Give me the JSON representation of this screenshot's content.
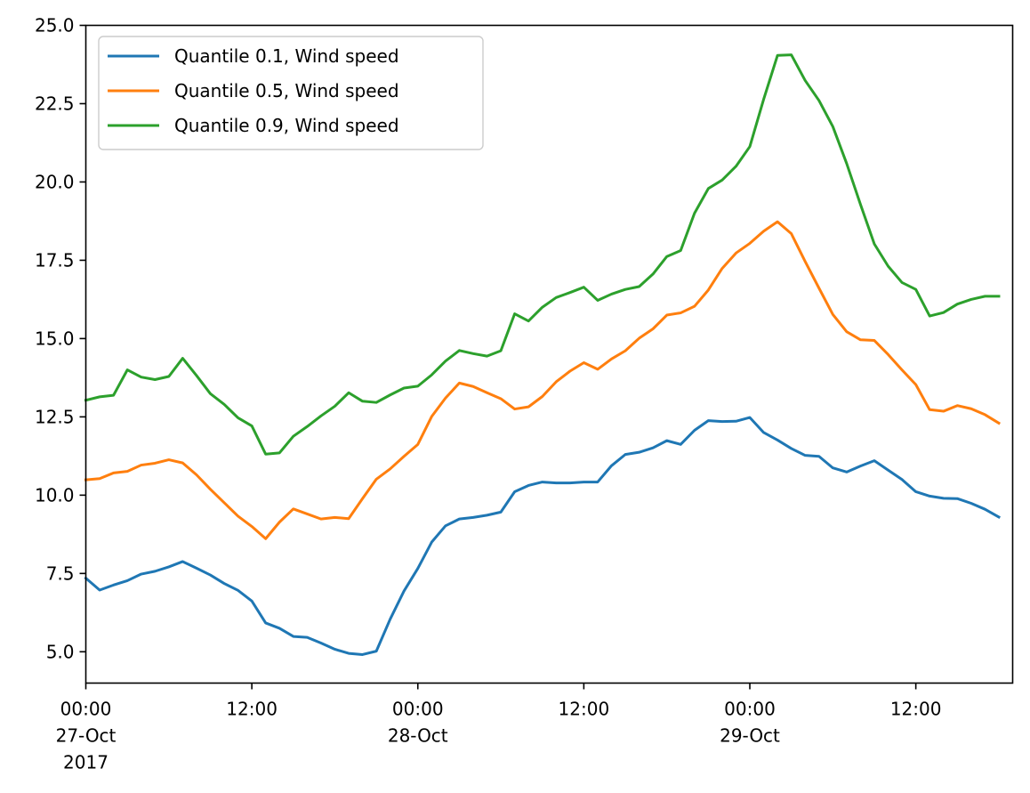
{
  "chart_data": {
    "type": "line",
    "title": "",
    "xlabel": "",
    "ylabel": "",
    "x_start": "2017-10-27 00:00",
    "x_step_hours": 1,
    "xlim": [
      "2017-10-27 00:00",
      "2017-10-29 19:00"
    ],
    "ylim": [
      4.0,
      25.0
    ],
    "grid": false,
    "legend_position": "upper left",
    "y_ticks": [
      5.0,
      7.5,
      10.0,
      12.5,
      15.0,
      17.5,
      20.0,
      22.5,
      25.0
    ],
    "x_ticks": [
      {
        "x": "2017-10-27 00:00",
        "lines": [
          "00:00",
          "27-Oct",
          "2017"
        ]
      },
      {
        "x": "2017-10-27 12:00",
        "lines": [
          "12:00"
        ]
      },
      {
        "x": "2017-10-28 00:00",
        "lines": [
          "00:00",
          "28-Oct"
        ]
      },
      {
        "x": "2017-10-28 12:00",
        "lines": [
          "12:00"
        ]
      },
      {
        "x": "2017-10-29 00:00",
        "lines": [
          "00:00",
          "29-Oct"
        ]
      },
      {
        "x": "2017-10-29 12:00",
        "lines": [
          "12:00"
        ]
      }
    ],
    "series": [
      {
        "name": "Quantile 0.1, Wind speed",
        "color": "#1f77b4",
        "values": [
          7.35,
          6.97,
          7.13,
          7.27,
          7.48,
          7.57,
          7.71,
          7.88,
          7.67,
          7.45,
          7.18,
          6.96,
          6.62,
          5.92,
          5.75,
          5.49,
          5.46,
          5.28,
          5.08,
          4.95,
          4.91,
          5.02,
          6.04,
          6.94,
          7.66,
          8.5,
          9.02,
          9.24,
          9.29,
          9.36,
          9.46,
          10.11,
          10.31,
          10.42,
          10.39,
          10.39,
          10.42,
          10.42,
          10.94,
          11.3,
          11.37,
          11.51,
          11.74,
          11.62,
          12.07,
          12.38,
          12.35,
          12.36,
          12.48,
          12.0,
          11.76,
          11.49,
          11.27,
          11.24,
          10.87,
          10.74,
          10.93,
          11.1,
          10.8,
          10.5,
          10.11,
          9.97,
          9.9,
          9.89,
          9.74,
          9.55,
          9.3
        ]
      },
      {
        "name": "Quantile 0.5, Wind speed",
        "color": "#ff7f0e",
        "values": [
          10.49,
          10.53,
          10.71,
          10.76,
          10.96,
          11.02,
          11.13,
          11.03,
          10.65,
          10.19,
          9.76,
          9.33,
          9.0,
          8.61,
          9.14,
          9.56,
          9.4,
          9.24,
          9.29,
          9.25,
          9.89,
          10.51,
          10.84,
          11.24,
          11.62,
          12.51,
          13.1,
          13.58,
          13.47,
          13.27,
          13.08,
          12.75,
          12.82,
          13.15,
          13.62,
          13.96,
          14.23,
          14.02,
          14.35,
          14.61,
          15.01,
          15.31,
          15.75,
          15.82,
          16.03,
          16.55,
          17.24,
          17.73,
          18.04,
          18.43,
          18.73,
          18.35,
          17.46,
          16.61,
          15.77,
          15.22,
          14.96,
          14.94,
          14.49,
          14.0,
          13.53,
          12.73,
          12.68,
          12.86,
          12.76,
          12.57,
          12.3
        ]
      },
      {
        "name": "Quantile 0.9, Wind speed",
        "color": "#2ca02c",
        "values": [
          13.03,
          13.14,
          13.19,
          14.0,
          13.77,
          13.69,
          13.79,
          14.37,
          13.82,
          13.24,
          12.9,
          12.47,
          12.21,
          11.31,
          11.35,
          11.88,
          12.19,
          12.53,
          12.84,
          13.27,
          13.0,
          12.96,
          13.2,
          13.42,
          13.48,
          13.84,
          14.28,
          14.62,
          14.52,
          14.44,
          14.61,
          15.79,
          15.56,
          16.0,
          16.31,
          16.47,
          16.64,
          16.22,
          16.42,
          16.57,
          16.66,
          17.06,
          17.62,
          17.81,
          19.0,
          19.79,
          20.06,
          20.5,
          21.13,
          22.64,
          24.04,
          24.06,
          23.24,
          22.6,
          21.77,
          20.59,
          19.28,
          18.02,
          17.31,
          16.79,
          16.57,
          15.72,
          15.83,
          16.1,
          16.25,
          16.35,
          16.35
        ]
      }
    ]
  }
}
